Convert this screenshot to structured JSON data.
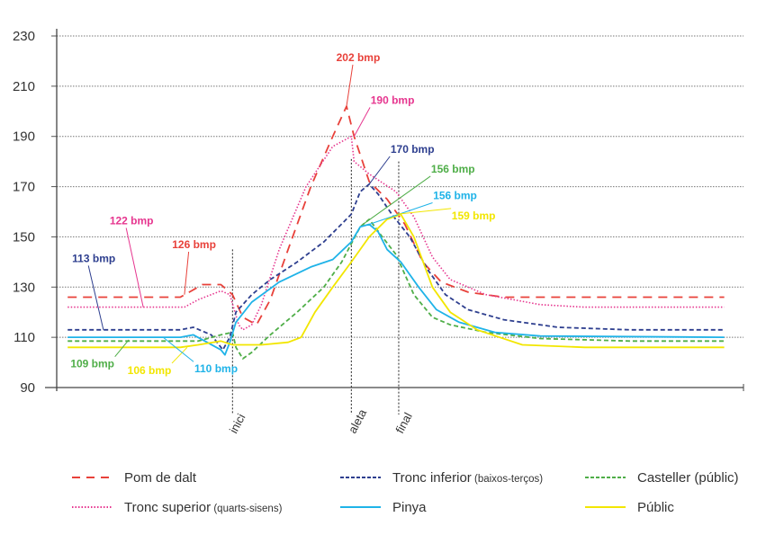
{
  "chart_data": {
    "type": "line",
    "title": "",
    "xlabel": "",
    "ylabel": "",
    "xlim": [
      0,
      100
    ],
    "ylim": [
      90,
      230
    ],
    "yticks": [
      90,
      110,
      130,
      150,
      170,
      190,
      210,
      230
    ],
    "grid": "horizontal-dotted",
    "legend_position": "bottom",
    "events": [
      {
        "label": "inici",
        "x": 25.6,
        "top": 145
      },
      {
        "label": "aleta",
        "x": 42.9,
        "top": 181
      },
      {
        "label": "final",
        "x": 49.8,
        "top": 180
      }
    ],
    "series": [
      {
        "name": "Pom de dalt",
        "sub": "",
        "color": "#e8413a",
        "style": "longdash",
        "points": [
          [
            1.6,
            126
          ],
          [
            18,
            126
          ],
          [
            19.3,
            128
          ],
          [
            21.2,
            131
          ],
          [
            23.9,
            131
          ],
          [
            25.6,
            127
          ],
          [
            27.1,
            118
          ],
          [
            29.1,
            115
          ],
          [
            31.1,
            125
          ],
          [
            33.7,
            145
          ],
          [
            37,
            170
          ],
          [
            40.2,
            190
          ],
          [
            42.2,
            202
          ],
          [
            43.3,
            190
          ],
          [
            45.5,
            172
          ],
          [
            48.1,
            165
          ],
          [
            50.7,
            155
          ],
          [
            53.3,
            140
          ],
          [
            56,
            132
          ],
          [
            59.9,
            128
          ],
          [
            65.1,
            126
          ],
          [
            97.2,
            126
          ]
        ]
      },
      {
        "name": "Tronc superior",
        "sub": "(quarts-sisens)",
        "color": "#e6368f",
        "style": "dotted",
        "points": [
          [
            1.6,
            122
          ],
          [
            18.6,
            122
          ],
          [
            20.6,
            125
          ],
          [
            23.9,
            128.5
          ],
          [
            25.2,
            127
          ],
          [
            26.5,
            115
          ],
          [
            27.1,
            113
          ],
          [
            28.4,
            115
          ],
          [
            29.8,
            123
          ],
          [
            32.4,
            145
          ],
          [
            36.3,
            170
          ],
          [
            40.2,
            186
          ],
          [
            42.9,
            190
          ],
          [
            43.3,
            180
          ],
          [
            45.5,
            175
          ],
          [
            49.4,
            168
          ],
          [
            52,
            158
          ],
          [
            54.7,
            142
          ],
          [
            57.3,
            133
          ],
          [
            62.5,
            127
          ],
          [
            70.4,
            123
          ],
          [
            76.9,
            122
          ],
          [
            97.2,
            122
          ]
        ]
      },
      {
        "name": "Tronc inferior",
        "sub": "(baixos-terços)",
        "color": "#2e3f8f",
        "style": "shortdash",
        "points": [
          [
            1.6,
            113
          ],
          [
            18,
            113
          ],
          [
            19.9,
            114
          ],
          [
            22.5,
            111
          ],
          [
            24.2,
            105
          ],
          [
            25.2,
            110
          ],
          [
            26.1,
            120
          ],
          [
            28.4,
            127
          ],
          [
            31.1,
            133
          ],
          [
            35,
            140
          ],
          [
            38.9,
            148
          ],
          [
            42.9,
            159
          ],
          [
            44.2,
            168
          ],
          [
            45.5,
            171
          ],
          [
            46.8,
            167
          ],
          [
            48.8,
            159
          ],
          [
            51.4,
            150
          ],
          [
            54,
            137
          ],
          [
            56.6,
            127
          ],
          [
            59.9,
            121
          ],
          [
            65.1,
            117
          ],
          [
            73,
            114
          ],
          [
            83.5,
            113
          ],
          [
            97.2,
            113
          ]
        ]
      },
      {
        "name": "Casteller",
        "sub": "(públic)",
        "sub_inline": true,
        "color": "#4fae48",
        "style": "shortdash",
        "points": [
          [
            1.6,
            108.5
          ],
          [
            20.6,
            108.5
          ],
          [
            23.9,
            111
          ],
          [
            25.6,
            112
          ],
          [
            26.1,
            106
          ],
          [
            27.1,
            101.5
          ],
          [
            28.4,
            104
          ],
          [
            31.1,
            111
          ],
          [
            35,
            120
          ],
          [
            38.9,
            130
          ],
          [
            41.5,
            140
          ],
          [
            44.2,
            154
          ],
          [
            45.5,
            157
          ],
          [
            47.4,
            150
          ],
          [
            49.4,
            143
          ],
          [
            52,
            127
          ],
          [
            54.7,
            118
          ],
          [
            57.3,
            115
          ],
          [
            62.5,
            112
          ],
          [
            70.4,
            109.5
          ],
          [
            83.5,
            108.5
          ],
          [
            97.2,
            108.5
          ]
        ]
      },
      {
        "name": "Pinya",
        "sub": "",
        "color": "#1fb3e8",
        "style": "solid",
        "points": [
          [
            1.6,
            110
          ],
          [
            18,
            110
          ],
          [
            19.9,
            111
          ],
          [
            21.9,
            108
          ],
          [
            23.9,
            105
          ],
          [
            24.5,
            103
          ],
          [
            25.2,
            108
          ],
          [
            26.1,
            116
          ],
          [
            28.4,
            124
          ],
          [
            32.4,
            132
          ],
          [
            37,
            138
          ],
          [
            40.2,
            141
          ],
          [
            42.9,
            148
          ],
          [
            44.2,
            154
          ],
          [
            45.5,
            155
          ],
          [
            46.8,
            152
          ],
          [
            48.1,
            145
          ],
          [
            50.1,
            140
          ],
          [
            52.7,
            130
          ],
          [
            55.3,
            121
          ],
          [
            58.6,
            116
          ],
          [
            63.8,
            112
          ],
          [
            70.4,
            110.5
          ],
          [
            97.2,
            110
          ]
        ]
      },
      {
        "name": "Públic",
        "sub": "",
        "color": "#f2e600",
        "style": "solid",
        "points": [
          [
            1.6,
            106
          ],
          [
            18,
            106
          ],
          [
            20.6,
            107
          ],
          [
            23.9,
            108.5
          ],
          [
            25.6,
            107
          ],
          [
            29.8,
            107
          ],
          [
            33.7,
            108
          ],
          [
            35.6,
            110
          ],
          [
            37.6,
            120
          ],
          [
            40.2,
            130
          ],
          [
            42.9,
            140
          ],
          [
            45.5,
            150
          ],
          [
            48.1,
            157
          ],
          [
            50.1,
            159
          ],
          [
            52,
            150
          ],
          [
            54.7,
            130
          ],
          [
            57.3,
            120
          ],
          [
            61.2,
            113
          ],
          [
            67.8,
            107
          ],
          [
            76.9,
            106
          ],
          [
            97.2,
            106
          ]
        ]
      }
    ],
    "annotations": [
      {
        "text": "202 bmp",
        "series": 0,
        "at": [
          42.2,
          202
        ],
        "label_at": [
          43.9,
          220
        ]
      },
      {
        "text": "190 bmp",
        "series": 1,
        "at": [
          43.3,
          190
        ],
        "label_at": [
          48.9,
          203
        ]
      },
      {
        "text": "170 bmp",
        "series": 2,
        "at": [
          45.5,
          171
        ],
        "label_at": [
          51.8,
          183.5
        ]
      },
      {
        "text": "156 bmp",
        "series": 3,
        "at": [
          44.6,
          155
        ],
        "label_at": [
          57.7,
          175.6
        ]
      },
      {
        "text": "156 bmp",
        "series": 4,
        "at": [
          45.5,
          155
        ],
        "label_at": [
          58,
          165
        ]
      },
      {
        "text": "159 bmp",
        "series": 5,
        "at": [
          49.5,
          159
        ],
        "label_at": [
          60.7,
          157
        ]
      },
      {
        "text": "122 bmp",
        "series": 1,
        "at": [
          12.6,
          122
        ],
        "label_at": [
          10.9,
          155
        ]
      },
      {
        "text": "126 bmp",
        "series": 0,
        "at": [
          18.6,
          127
        ],
        "label_at": [
          20,
          145.5
        ]
      },
      {
        "text": "113 bmp",
        "series": 2,
        "at": [
          6.8,
          113
        ],
        "label_at": [
          5.4,
          140
        ]
      },
      {
        "text": "109 bmp",
        "series": 3,
        "at": [
          10.5,
          109
        ],
        "label_at": [
          5.2,
          98
        ]
      },
      {
        "text": "106 bmp",
        "series": 5,
        "at": [
          19,
          106
        ],
        "label_at": [
          13.5,
          95.4
        ]
      },
      {
        "text": "110 bmp",
        "series": 4,
        "at": [
          15.5,
          110
        ],
        "label_at": [
          23.2,
          96
        ]
      }
    ]
  }
}
